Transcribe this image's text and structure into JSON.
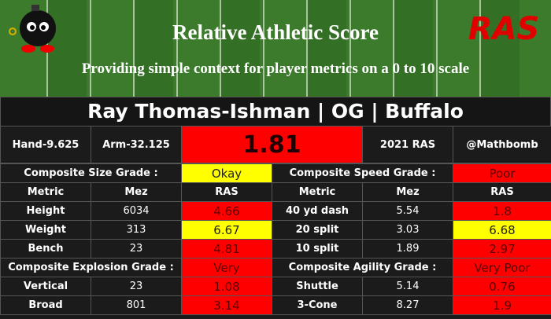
{
  "header": {
    "title": "Relative Athletic Score",
    "subtitle": "Providing simple context for player metrics on a 0 to 10 scale",
    "logo": "RAS"
  },
  "player": "Ray Thomas-Ishman | OG | Buffalo",
  "summary": {
    "hand": "Hand-9.625",
    "arm": "Arm-32.125",
    "score": 1.81,
    "year": "2021 RAS",
    "handle": "@Mathbomb"
  },
  "table": {
    "rows": [
      [
        "Composite Size Grade :",
        "Okay",
        "Composite Speed Grade :",
        "Poor"
      ],
      [
        "Metric",
        "Mez",
        "RAS",
        "Metric",
        "Mez",
        "RAS"
      ],
      [
        "Height",
        6034,
        4.66,
        "40 yd dash",
        5.54,
        1.8
      ],
      [
        "Weight",
        313,
        6.67,
        "20 split",
        3.03,
        6.68
      ],
      [
        "Bench",
        23,
        4.81,
        "10 split",
        1.89,
        2.97
      ],
      [
        "Composite Explosion Grade :",
        "Very",
        "Composite Agility Grade :",
        "Very Poor"
      ],
      [
        "Vertical",
        23,
        1.08,
        "Shuttle",
        5.14,
        0.76
      ],
      [
        "Broad",
        801,
        3.14,
        "3-Cone",
        8.27,
        1.9
      ]
    ]
  }
}
